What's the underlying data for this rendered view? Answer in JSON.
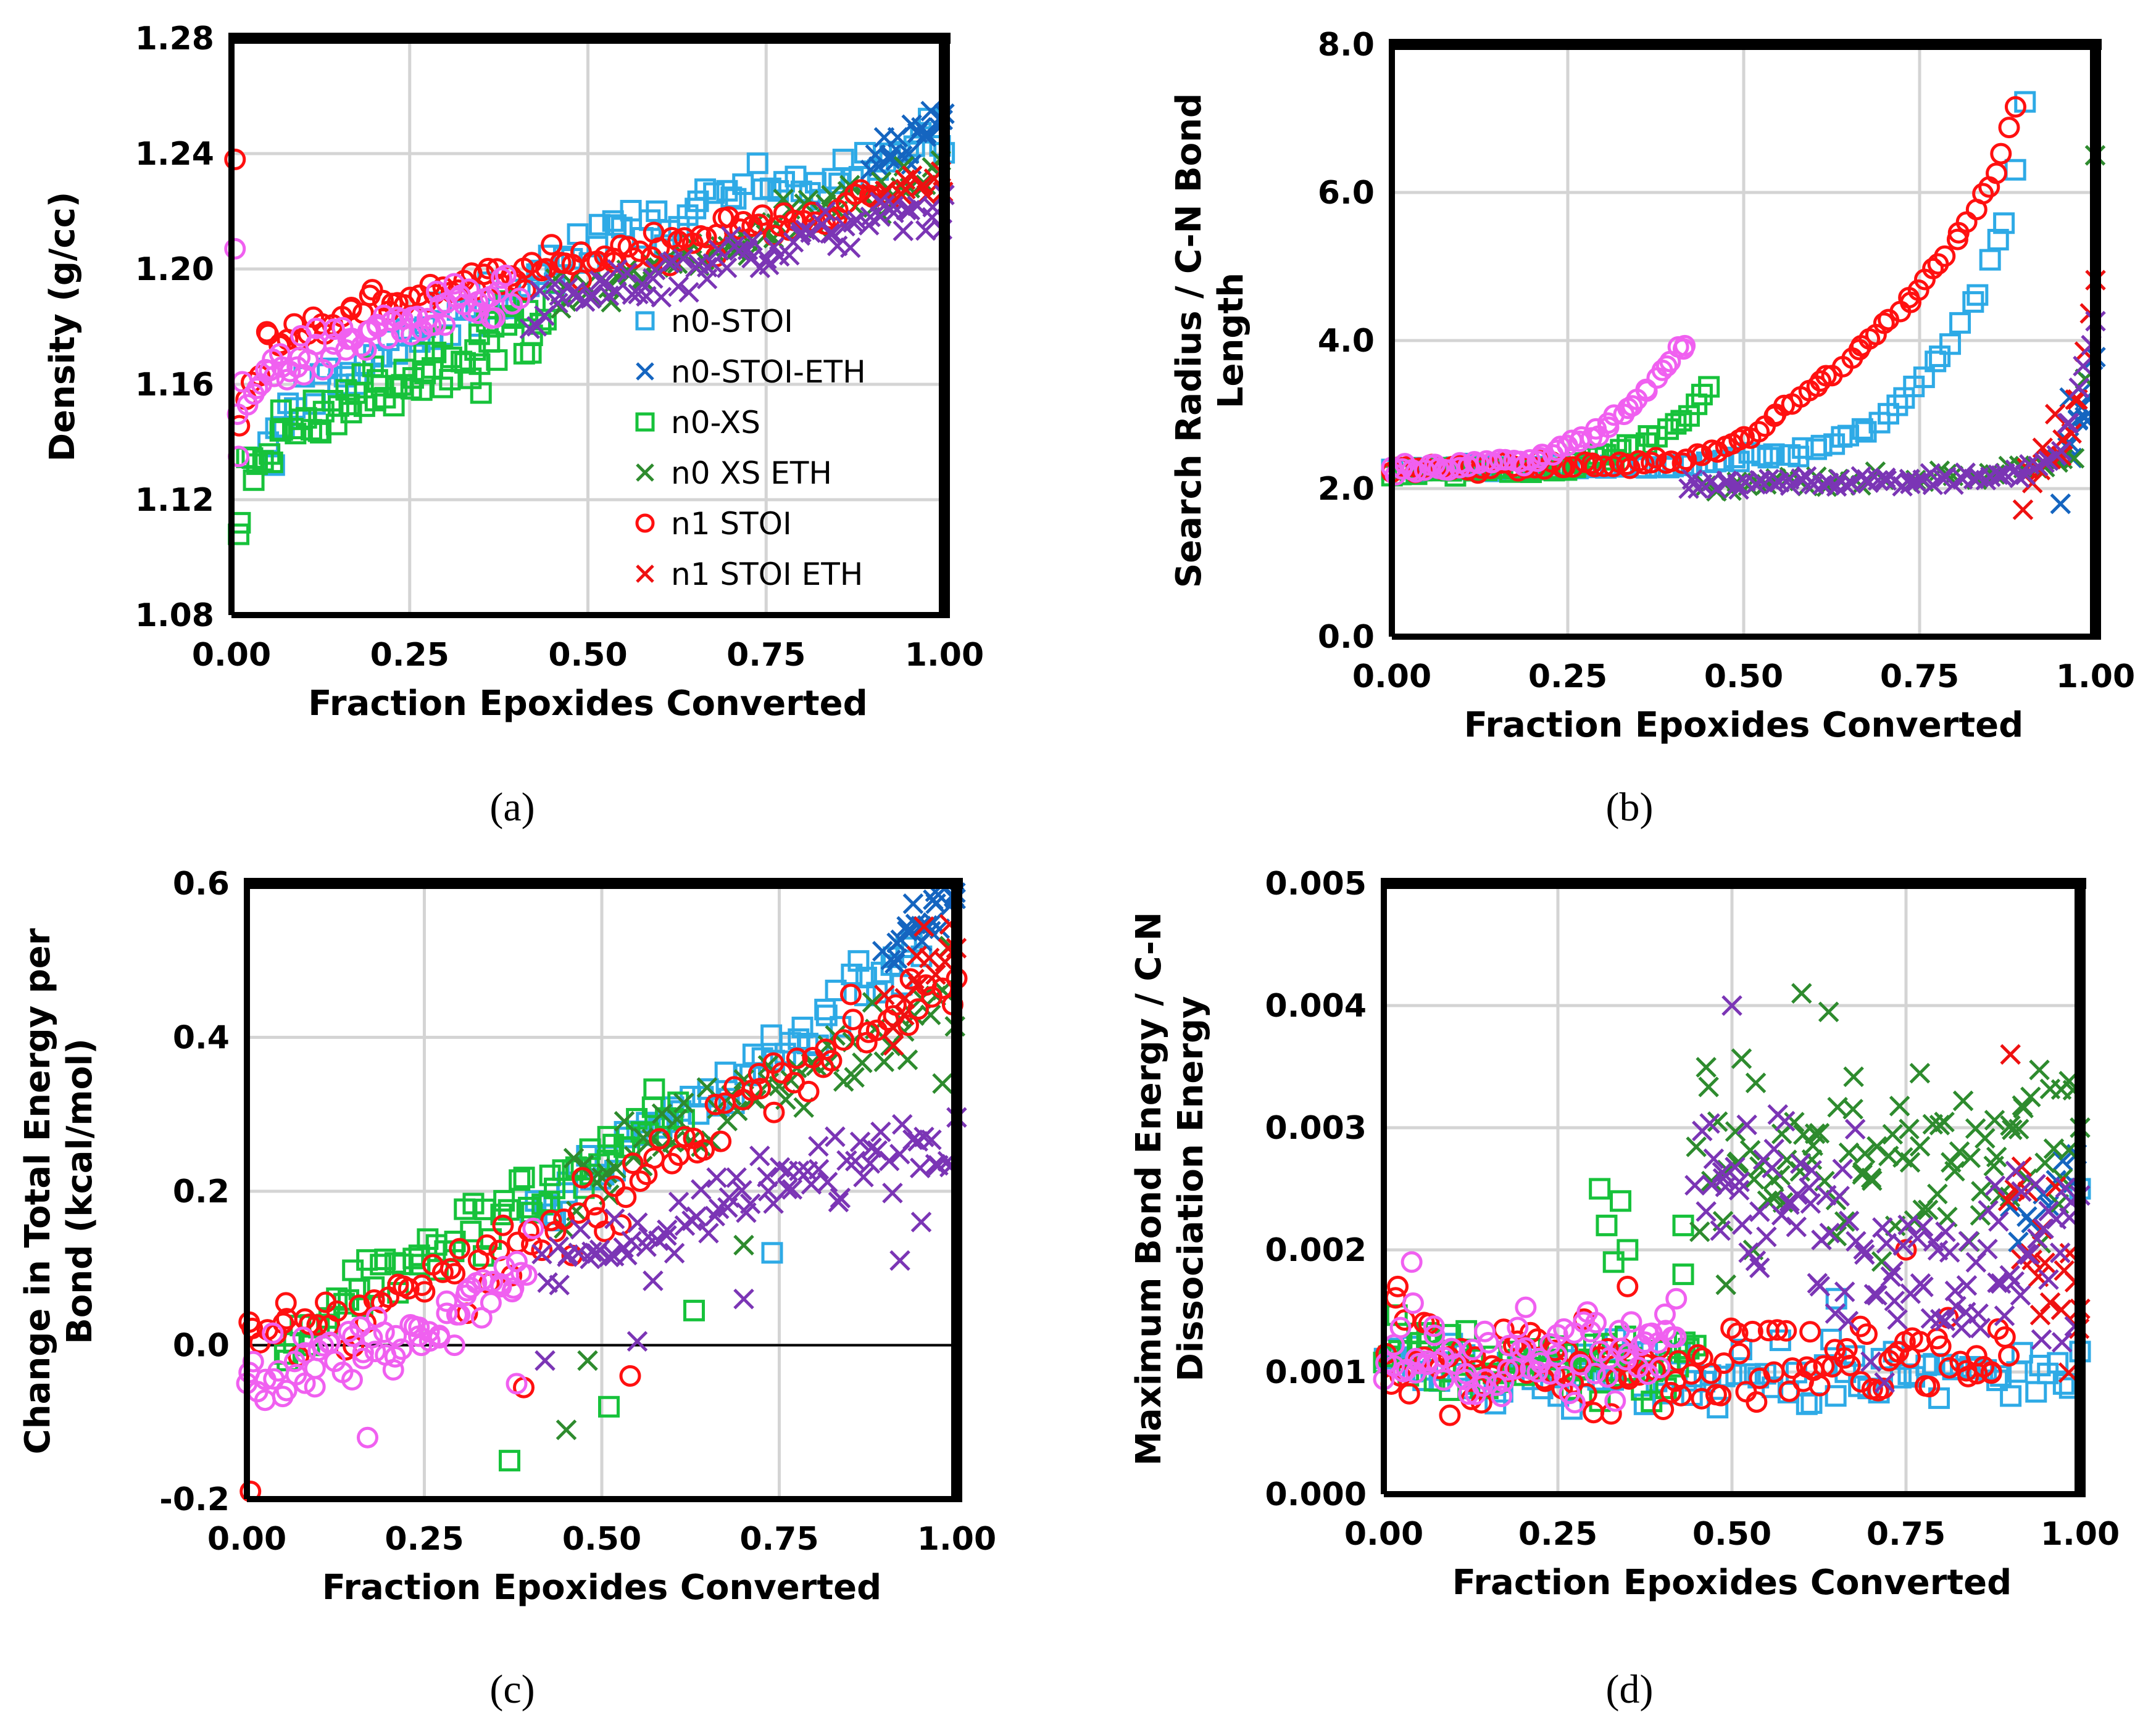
{
  "series_styles": [
    {
      "name": "n0-STOI",
      "marker": "square",
      "color": "#2EAAE6"
    },
    {
      "name": "n0-STOI-ETH",
      "marker": "x",
      "color": "#1565C0"
    },
    {
      "name": "n0-XS",
      "marker": "square",
      "color": "#17C23B"
    },
    {
      "name": "n0 XS ETH",
      "marker": "x",
      "color": "#2E8B2E"
    },
    {
      "name": "n1 STOI",
      "marker": "circle",
      "color": "#FF1010"
    },
    {
      "name": "n1 STOI ETH",
      "marker": "x",
      "color": "#EE1111"
    },
    {
      "name": "",
      "marker": "x",
      "color": "#7B35B5"
    },
    {
      "name": "",
      "marker": "circle",
      "color": "#F060F0"
    }
  ],
  "chart_data": [
    {
      "type": "scatter",
      "panel_label": "(a)",
      "xlabel": "Fraction Epoxides Converted",
      "ylabel": [
        "Density (g/cc)"
      ],
      "xlim": [
        0,
        1
      ],
      "ylim": [
        1.08,
        1.28
      ],
      "xticks": [
        "0.00",
        "0.25",
        "0.50",
        "0.75",
        "1.00"
      ],
      "yticks": [
        "1.08",
        "1.12",
        "1.16",
        "1.20",
        "1.24",
        "1.28"
      ],
      "legend": [
        "n0-STOI",
        "n0-STOI-ETH",
        "n0-XS",
        "n0 XS ETH",
        "n1 STOI",
        "n1 STOI ETH"
      ],
      "series": [
        {
          "name": "n0-STOI",
          "trend": [
            [
              0.05,
              1.135
            ],
            [
              0.1,
              1.158
            ],
            [
              0.3,
              1.18
            ],
            [
              0.5,
              1.208
            ],
            [
              0.7,
              1.225
            ],
            [
              0.9,
              1.238
            ],
            [
              1.0,
              1.245
            ]
          ],
          "spread": 0.004,
          "n": 90,
          "outliers": [
            [
              0.06,
              1.132
            ]
          ]
        },
        {
          "name": "n0-STOI-ETH",
          "trend": [
            [
              0.9,
              1.236
            ],
            [
              1.0,
              1.252
            ]
          ],
          "spread": 0.004,
          "n": 20
        },
        {
          "name": "n0-XS",
          "trend": [
            [
              0.02,
              1.13
            ],
            [
              0.1,
              1.145
            ],
            [
              0.2,
              1.158
            ],
            [
              0.3,
              1.17
            ],
            [
              0.4,
              1.18
            ],
            [
              0.45,
              1.185
            ]
          ],
          "spread": 0.005,
          "n": 70,
          "outliers": [
            [
              0.01,
              1.108
            ],
            [
              0.012,
              1.112
            ],
            [
              0.35,
              1.157
            ]
          ]
        },
        {
          "name": "n0 XS ETH",
          "trend": [
            [
              0.45,
              1.188
            ],
            [
              0.6,
              1.2
            ],
            [
              0.8,
              1.218
            ],
            [
              1.0,
              1.236
            ]
          ],
          "spread": 0.004,
          "n": 60
        },
        {
          "name": "n1 STOI",
          "trend": [
            [
              0.01,
              1.145
            ],
            [
              0.05,
              1.175
            ],
            [
              0.2,
              1.188
            ],
            [
              0.4,
              1.198
            ],
            [
              0.6,
              1.208
            ],
            [
              0.8,
              1.218
            ],
            [
              0.9,
              1.225
            ]
          ],
          "spread": 0.003,
          "n": 100,
          "outliers": [
            [
              0.005,
              1.238
            ]
          ]
        },
        {
          "name": "n1 STOI ETH",
          "trend": [
            [
              0.9,
              1.225
            ],
            [
              1.0,
              1.232
            ]
          ],
          "spread": 0.003,
          "n": 15
        },
        {
          "name": "",
          "trend": [
            [
              0.42,
              1.185
            ],
            [
              0.6,
              1.198
            ],
            [
              0.8,
              1.21
            ],
            [
              1.0,
              1.222
            ]
          ],
          "spread": 0.004,
          "n": 80
        },
        {
          "name": "",
          "trend": [
            [
              0.01,
              1.15
            ],
            [
              0.05,
              1.165
            ],
            [
              0.2,
              1.178
            ],
            [
              0.35,
              1.188
            ],
            [
              0.4,
              1.19
            ]
          ],
          "spread": 0.004,
          "n": 70,
          "outliers": [
            [
              0.005,
              1.207
            ],
            [
              0.01,
              1.135
            ]
          ]
        }
      ]
    },
    {
      "type": "scatter",
      "panel_label": "(b)",
      "xlabel": "Fraction Epoxides Converted",
      "ylabel": [
        "Search Radius / C-N Bond",
        "Length"
      ],
      "xlim": [
        0,
        1
      ],
      "ylim": [
        0,
        8
      ],
      "xticks": [
        "0.00",
        "0.25",
        "0.50",
        "0.75",
        "1.00"
      ],
      "yticks": [
        "0.0",
        "2.0",
        "4.0",
        "6.0",
        "8.0"
      ],
      "series": [
        {
          "name": "n0-STOI",
          "trend": [
            [
              0.0,
              2.25
            ],
            [
              0.4,
              2.3
            ],
            [
              0.6,
              2.5
            ],
            [
              0.7,
              2.9
            ],
            [
              0.78,
              3.8
            ],
            [
              0.83,
              4.6
            ],
            [
              0.87,
              5.6
            ],
            [
              0.89,
              6.5
            ],
            [
              0.9,
              7.25
            ]
          ],
          "spread": 0.03,
          "n": 70
        },
        {
          "name": "n0-STOI-ETH",
          "trend": [
            [
              0.95,
              2.0
            ],
            [
              1.0,
              3.8
            ]
          ],
          "spread": 0.3,
          "n": 15
        },
        {
          "name": "n0-XS",
          "trend": [
            [
              0.0,
              2.22
            ],
            [
              0.25,
              2.3
            ],
            [
              0.35,
              2.55
            ],
            [
              0.42,
              3.0
            ],
            [
              0.45,
              3.4
            ]
          ],
          "spread": 0.04,
          "n": 45
        },
        {
          "name": "n0 XS ETH",
          "trend": [
            [
              0.45,
              2.05
            ],
            [
              0.8,
              2.15
            ],
            [
              0.98,
              2.4
            ],
            [
              1.0,
              6.6
            ]
          ],
          "spread": 0.05,
          "n": 40
        },
        {
          "name": "n1 STOI",
          "trend": [
            [
              0.0,
              2.25
            ],
            [
              0.4,
              2.35
            ],
            [
              0.5,
              2.65
            ],
            [
              0.55,
              3.0
            ],
            [
              0.63,
              3.6
            ],
            [
              0.7,
              4.2
            ],
            [
              0.75,
              4.7
            ],
            [
              0.82,
              5.6
            ],
            [
              0.86,
              6.3
            ],
            [
              0.89,
              7.3
            ]
          ],
          "spread": 0.03,
          "n": 90
        },
        {
          "name": "n1 STOI ETH",
          "trend": [
            [
              0.9,
              2.05
            ],
            [
              0.96,
              2.9
            ],
            [
              1.0,
              4.5
            ]
          ],
          "spread": 0.2,
          "n": 15
        },
        {
          "name": "",
          "trend": [
            [
              0.42,
              2.05
            ],
            [
              0.7,
              2.1
            ],
            [
              0.9,
              2.2
            ],
            [
              0.95,
              2.5
            ],
            [
              1.0,
              4.2
            ]
          ],
          "spread": 0.04,
          "n": 70
        },
        {
          "name": "",
          "trend": [
            [
              0.0,
              2.25
            ],
            [
              0.2,
              2.4
            ],
            [
              0.3,
              2.8
            ],
            [
              0.37,
              3.4
            ],
            [
              0.42,
              4.0
            ]
          ],
          "spread": 0.04,
          "n": 55
        }
      ]
    },
    {
      "type": "scatter",
      "panel_label": "(c)",
      "xlabel": "Fraction Epoxides Converted",
      "ylabel": [
        "Change in Total Energy per",
        "Bond (kcal/mol)"
      ],
      "xlim": [
        0,
        1
      ],
      "ylim": [
        -0.2,
        0.6
      ],
      "xticks": [
        "0.00",
        "0.25",
        "0.50",
        "0.75",
        "1.00"
      ],
      "yticks": [
        "-0.2",
        "0.0",
        "0.2",
        "0.4",
        "0.6"
      ],
      "zero_line": true,
      "series": [
        {
          "name": "n0-STOI",
          "trend": [
            [
              0.4,
              0.16
            ],
            [
              0.6,
              0.3
            ],
            [
              0.75,
              0.38
            ],
            [
              0.9,
              0.5
            ],
            [
              0.95,
              0.52
            ]
          ],
          "spread": 0.02,
          "n": 60,
          "outliers": [
            [
              0.74,
              0.12
            ]
          ]
        },
        {
          "name": "n0-STOI-ETH",
          "trend": [
            [
              0.9,
              0.5
            ],
            [
              1.0,
              0.59
            ]
          ],
          "spread": 0.02,
          "n": 25
        },
        {
          "name": "n0-XS",
          "trend": [
            [
              0.05,
              0.0
            ],
            [
              0.15,
              0.07
            ],
            [
              0.3,
              0.14
            ],
            [
              0.45,
              0.22
            ],
            [
              0.55,
              0.27
            ],
            [
              0.62,
              0.32
            ]
          ],
          "spread": 0.02,
          "n": 70,
          "outliers": [
            [
              0.37,
              -0.15
            ],
            [
              0.51,
              -0.08
            ],
            [
              0.63,
              0.045
            ]
          ]
        },
        {
          "name": "n0 XS ETH",
          "trend": [
            [
              0.45,
              0.2
            ],
            [
              0.6,
              0.27
            ],
            [
              0.8,
              0.37
            ],
            [
              1.0,
              0.46
            ]
          ],
          "spread": 0.03,
          "n": 60,
          "outliers": [
            [
              0.45,
              -0.11
            ],
            [
              0.48,
              -0.02
            ],
            [
              0.7,
              0.13
            ],
            [
              0.98,
              0.34
            ]
          ]
        },
        {
          "name": "n1 STOI",
          "trend": [
            [
              0.0,
              0.0
            ],
            [
              0.2,
              0.05
            ],
            [
              0.4,
              0.13
            ],
            [
              0.5,
              0.17
            ],
            [
              0.7,
              0.33
            ],
            [
              0.85,
              0.4
            ],
            [
              1.0,
              0.48
            ]
          ],
          "spread": 0.02,
          "n": 100,
          "outliers": [
            [
              0.005,
              -0.19
            ],
            [
              0.055,
              0.055
            ],
            [
              0.39,
              -0.055
            ],
            [
              0.54,
              -0.04
            ]
          ]
        },
        {
          "name": "n1 STOI ETH",
          "trend": [
            [
              0.9,
              0.43
            ],
            [
              1.0,
              0.5
            ]
          ],
          "spread": 0.03,
          "n": 15
        },
        {
          "name": "",
          "trend": [
            [
              0.42,
              0.1
            ],
            [
              0.65,
              0.17
            ],
            [
              0.8,
              0.22
            ],
            [
              1.0,
              0.29
            ]
          ],
          "spread": 0.025,
          "n": 80,
          "outliers": [
            [
              0.42,
              -0.02
            ],
            [
              0.55,
              0.005
            ],
            [
              0.7,
              0.06
            ],
            [
              0.92,
              0.11
            ],
            [
              0.95,
              0.16
            ]
          ]
        },
        {
          "name": "",
          "trend": [
            [
              0.0,
              -0.04
            ],
            [
              0.15,
              -0.01
            ],
            [
              0.3,
              0.05
            ],
            [
              0.4,
              0.12
            ]
          ],
          "spread": 0.02,
          "n": 70,
          "outliers": [
            [
              0.17,
              -0.12
            ],
            [
              0.38,
              -0.05
            ]
          ]
        }
      ]
    },
    {
      "type": "scatter",
      "panel_label": "(d)",
      "xlabel": "Fraction Epoxides Converted",
      "ylabel": [
        "Maximum Bond Energy / C-N",
        "Dissociation Energy"
      ],
      "xlim": [
        0,
        1
      ],
      "ylim": [
        0,
        0.005
      ],
      "xticks": [
        "0.00",
        "0.25",
        "0.50",
        "0.75",
        "1.00"
      ],
      "yticks": [
        "0.000",
        "0.001",
        "0.002",
        "0.003",
        "0.004",
        "0.005"
      ],
      "series": [
        {
          "name": "n0-STOI",
          "trend": [
            [
              0.0,
              0.001
            ],
            [
              1.0,
              0.00095
            ]
          ],
          "spread": 0.00015,
          "n": 90,
          "outliers": [
            [
              0.65,
              0.0016
            ],
            [
              1.0,
              0.0025
            ]
          ]
        },
        {
          "name": "n0-STOI-ETH",
          "trend": [
            [
              0.9,
              0.0022
            ],
            [
              1.0,
              0.0026
            ]
          ],
          "spread": 0.0002,
          "n": 10
        },
        {
          "name": "n0-XS",
          "trend": [
            [
              0.0,
              0.0011
            ],
            [
              0.45,
              0.001
            ]
          ],
          "spread": 0.00015,
          "n": 60,
          "outliers": [
            [
              0.31,
              0.0025
            ],
            [
              0.32,
              0.0022
            ],
            [
              0.33,
              0.0019
            ],
            [
              0.34,
              0.0024
            ],
            [
              0.35,
              0.002
            ],
            [
              0.43,
              0.0018
            ],
            [
              0.43,
              0.0022
            ]
          ]
        },
        {
          "name": "n0 XS ETH",
          "trend": [
            [
              0.45,
              0.0027
            ],
            [
              0.6,
              0.0029
            ],
            [
              0.8,
              0.0025
            ],
            [
              1.0,
              0.003
            ]
          ],
          "spread": 0.0004,
          "n": 100,
          "outliers": [
            [
              0.6,
              0.0041
            ]
          ]
        },
        {
          "name": "n1 STOI",
          "trend": [
            [
              0.0,
              0.0011
            ],
            [
              0.5,
              0.00105
            ],
            [
              0.9,
              0.0011
            ]
          ],
          "spread": 0.00018,
          "n": 120,
          "outliers": [
            [
              0.02,
              0.0017
            ],
            [
              0.35,
              0.0017
            ],
            [
              0.75,
              0.002
            ]
          ]
        },
        {
          "name": "n1 STOI ETH",
          "trend": [
            [
              0.9,
              0.0025
            ],
            [
              1.0,
              0.0015
            ]
          ],
          "spread": 0.0004,
          "n": 20,
          "outliers": [
            [
              0.9,
              0.0036
            ]
          ]
        },
        {
          "name": "",
          "trend": [
            [
              0.45,
              0.0026
            ],
            [
              0.6,
              0.0024
            ],
            [
              0.8,
              0.0016
            ],
            [
              1.0,
              0.0022
            ]
          ],
          "spread": 0.0004,
          "n": 110,
          "outliers": [
            [
              0.5,
              0.004
            ]
          ]
        },
        {
          "name": "",
          "trend": [
            [
              0.0,
              0.0011
            ],
            [
              0.42,
              0.00115
            ]
          ],
          "spread": 0.0002,
          "n": 80,
          "outliers": [
            [
              0.04,
              0.0019
            ],
            [
              0.42,
              0.0016
            ]
          ]
        }
      ]
    }
  ]
}
